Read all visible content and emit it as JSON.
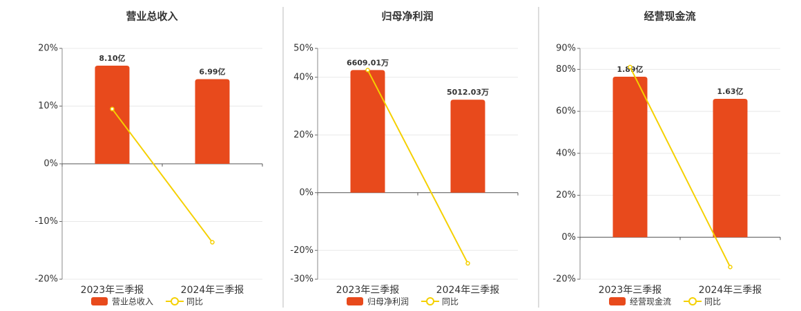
{
  "chart_data": [
    {
      "type": "bar",
      "title": "营业总收入",
      "categories": [
        "2023年三季报",
        "2024年三季报"
      ],
      "series": [
        {
          "name": "营业总收入",
          "color": "#e84a1c",
          "values": [
            8.1,
            6.99
          ],
          "value_labels": [
            "8.10亿",
            "6.99亿"
          ]
        },
        {
          "name": "同比",
          "type": "line",
          "color": "#f5d000",
          "values": [
            9.5,
            -13.6
          ]
        }
      ],
      "ylim": [
        -20,
        20
      ],
      "yticks": [
        {
          "value": 20,
          "label": "20%"
        },
        {
          "value": 10,
          "label": "10%"
        },
        {
          "value": 0,
          "label": "0%"
        },
        {
          "value": -10,
          "label": "-10%"
        },
        {
          "value": -20,
          "label": "-20%"
        }
      ],
      "grid": true
    },
    {
      "type": "bar",
      "title": "归母净利润",
      "categories": [
        "2023年三季报",
        "2024年三季报"
      ],
      "series": [
        {
          "name": "归母净利润",
          "color": "#e84a1c",
          "values": [
            6609.01,
            5012.03
          ],
          "value_labels": [
            "6609.01万",
            "5012.03万"
          ]
        },
        {
          "name": "同比",
          "type": "line",
          "color": "#f5d000",
          "values": [
            42.5,
            -24.5
          ]
        }
      ],
      "ylim": [
        -30,
        50
      ],
      "yticks": [
        {
          "value": 50,
          "label": "50%"
        },
        {
          "value": 40,
          "label": "40%"
        },
        {
          "value": 20,
          "label": "20%"
        },
        {
          "value": 0,
          "label": "0%"
        },
        {
          "value": -20,
          "label": "-20%"
        },
        {
          "value": -30,
          "label": "-30%"
        }
      ],
      "grid": true
    },
    {
      "type": "bar",
      "title": "经营现金流",
      "categories": [
        "2023年三季报",
        "2024年三季报"
      ],
      "series": [
        {
          "name": "经营现金流",
          "color": "#e84a1c",
          "values": [
            1.89,
            1.63
          ],
          "value_labels": [
            "1.89亿",
            "1.63亿"
          ]
        },
        {
          "name": "同比",
          "type": "line",
          "color": "#f5d000",
          "values": [
            81.1,
            -14.2
          ]
        }
      ],
      "ylim": [
        -20,
        90
      ],
      "yticks": [
        {
          "value": 90,
          "label": "90%"
        },
        {
          "value": 80,
          "label": "80%"
        },
        {
          "value": 60,
          "label": "60%"
        },
        {
          "value": 40,
          "label": "40%"
        },
        {
          "value": 20,
          "label": "20%"
        },
        {
          "value": 0,
          "label": "0%"
        },
        {
          "value": -20,
          "label": "-20%"
        }
      ],
      "grid": true
    }
  ]
}
